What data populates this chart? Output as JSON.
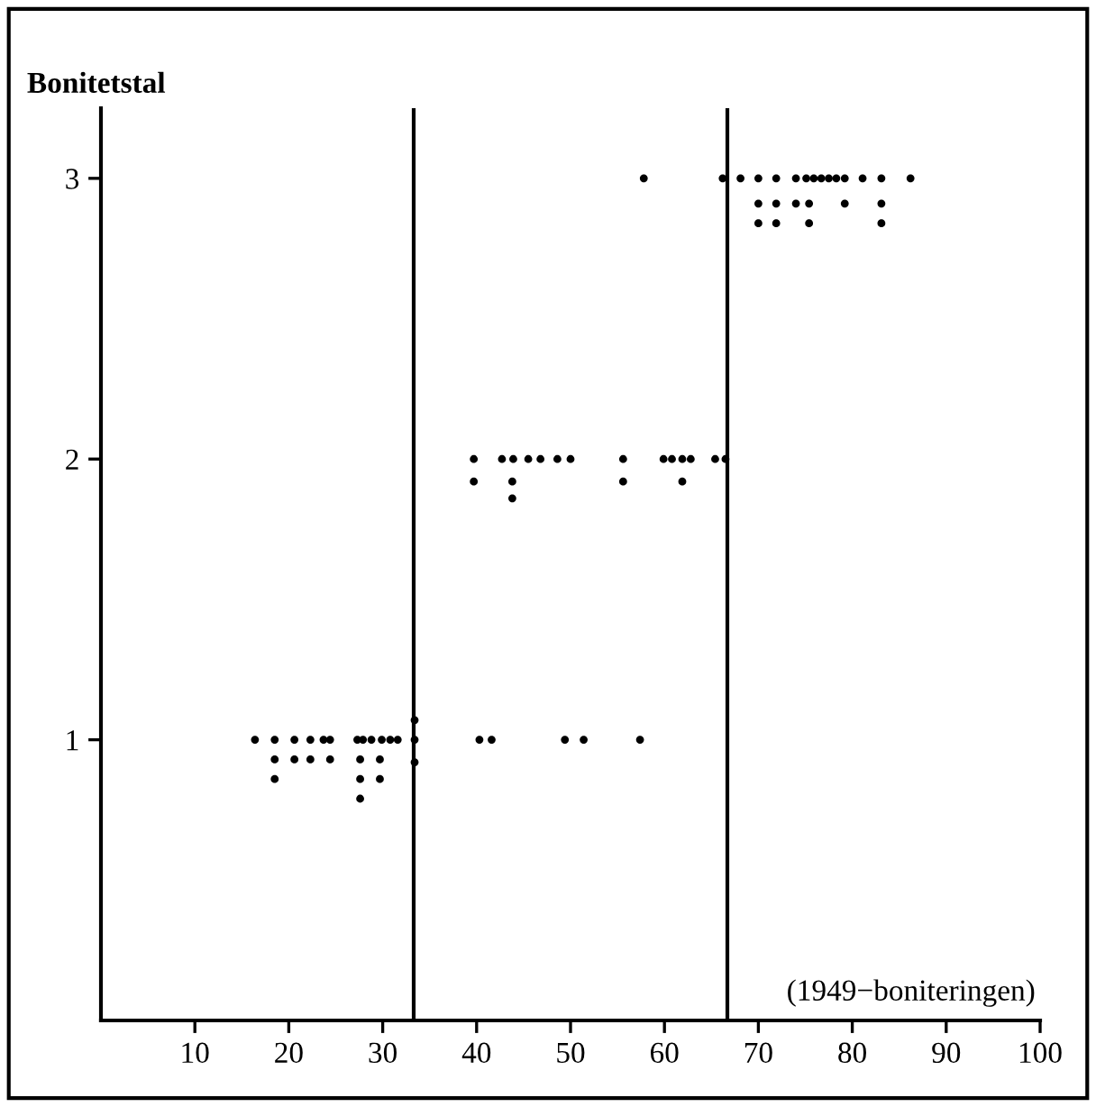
{
  "chart_data": {
    "type": "scatter",
    "ylabel": "Bonitetstal",
    "xlabel": "(1949−boniteringen)",
    "xlim": [
      0,
      100
    ],
    "ylim": [
      0,
      3.25
    ],
    "xticks": [
      10,
      20,
      30,
      40,
      50,
      60,
      70,
      80,
      90,
      100
    ],
    "yticks": [
      1,
      2,
      3
    ],
    "grid": false,
    "marker": "circle",
    "ref_lines": [
      {
        "axis": "x",
        "value": 33.3,
        "label": null,
        "color": "#000000"
      },
      {
        "axis": "x",
        "value": 66.7,
        "label": null,
        "color": "#000000"
      }
    ],
    "series": [
      {
        "color": "#000000",
        "x": [
          16.4,
          18.5,
          20.6,
          22.3,
          23.7,
          24.4,
          27.3,
          27.9,
          28.8,
          29.9,
          30.8,
          31.6,
          33.4,
          40.3,
          41.6,
          49.4,
          51.4,
          57.4,
          18.5,
          20.6,
          22.3,
          24.4,
          27.6,
          29.7,
          33.4,
          18.5,
          27.6,
          29.7,
          27.6,
          33.4,
          39.7,
          42.7,
          43.9,
          45.5,
          46.8,
          48.6,
          50.0,
          55.6,
          59.9,
          60.8,
          61.9,
          62.8,
          65.4,
          66.5,
          39.7,
          43.8,
          55.6,
          61.9,
          43.8,
          57.8,
          66.2,
          68.1,
          70.0,
          71.9,
          74.0,
          75.1,
          75.9,
          76.7,
          77.5,
          78.3,
          79.2,
          81.1,
          83.1,
          86.2,
          70.0,
          71.9,
          74.0,
          75.4,
          79.2,
          83.1,
          70.0,
          71.9,
          75.4,
          83.1
        ],
        "values": [
          1,
          1,
          1,
          1,
          1,
          1,
          1,
          1,
          1,
          1,
          1,
          1,
          1,
          1,
          1,
          1,
          1,
          1,
          0.93,
          0.93,
          0.93,
          0.93,
          0.93,
          0.93,
          0.92,
          0.86,
          0.86,
          0.86,
          0.79,
          1.07,
          2,
          2,
          2,
          2,
          2,
          2,
          2,
          2,
          2,
          2,
          2,
          2,
          2,
          2,
          1.92,
          1.92,
          1.92,
          1.92,
          1.86,
          3,
          3,
          3,
          3,
          3,
          3,
          3,
          3,
          3,
          3,
          3,
          3,
          3,
          3,
          3,
          2.91,
          2.91,
          2.91,
          2.91,
          2.91,
          2.91,
          2.84,
          2.84,
          2.84,
          2.84
        ]
      }
    ]
  }
}
